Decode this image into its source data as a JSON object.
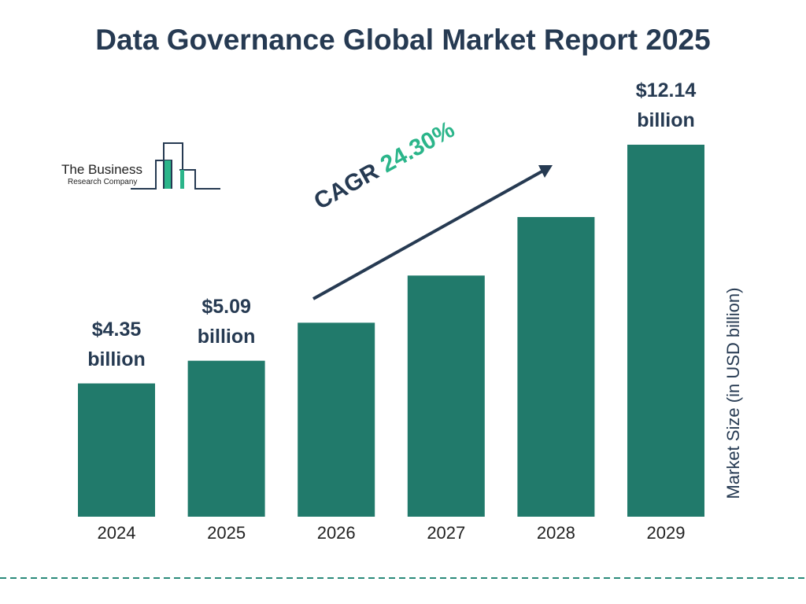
{
  "chart_data": {
    "type": "bar",
    "title": "Data Governance Global Market Report 2025",
    "logo": {
      "line1": "The Business",
      "line2": "Research Company"
    },
    "annotation": {
      "label": "CAGR",
      "value": "24.30%"
    },
    "y_axis_label": "Market Size (in USD billion)",
    "categories": [
      "2024",
      "2025",
      "2026",
      "2027",
      "2028",
      "2029"
    ],
    "values": [
      4.35,
      5.09,
      6.33,
      7.87,
      9.78,
      12.14
    ],
    "value_labels": [
      "$4.35 billion",
      "$5.09 billion",
      null,
      null,
      null,
      "$12.14 billion"
    ],
    "color": "#217a6b"
  }
}
